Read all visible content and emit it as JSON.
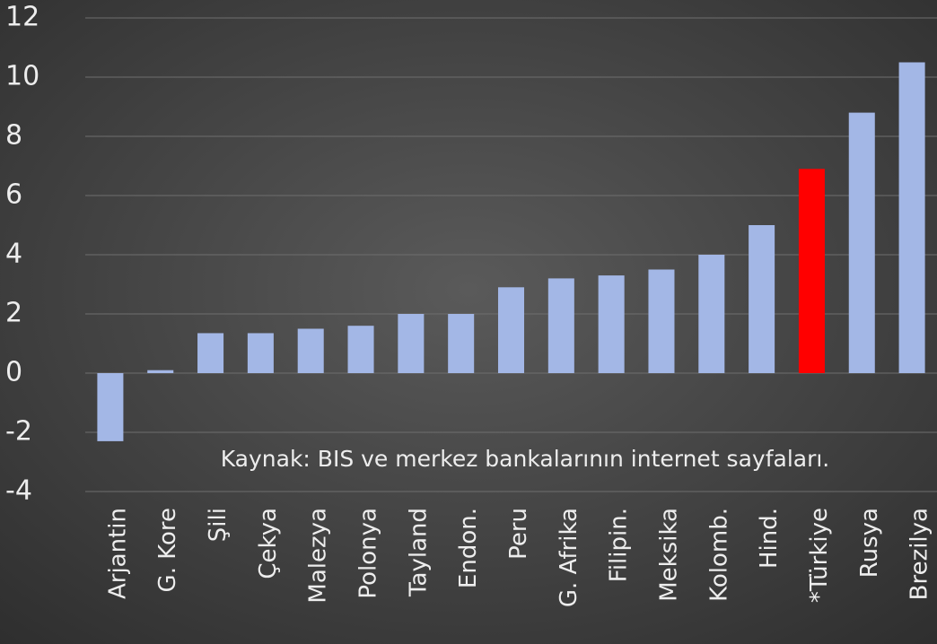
{
  "chart_data": {
    "type": "bar",
    "categories": [
      "Arjantin",
      "G. Kore",
      "Şili",
      "Çekya",
      "Malezya",
      "Polonya",
      "Tayland",
      "Endon.",
      "Peru",
      "G. Afrika",
      "Filipin.",
      "Meksika",
      "Kolomb.",
      "Hind.",
      "*Türkiye",
      "Rusya",
      "Brezilya"
    ],
    "values": [
      -2.3,
      0.1,
      1.35,
      1.35,
      1.5,
      1.6,
      2.0,
      2.0,
      2.9,
      3.2,
      3.3,
      3.5,
      4.0,
      5.0,
      6.9,
      8.8,
      10.5
    ],
    "colors": [
      "#a3b7e6",
      "#a3b7e6",
      "#a3b7e6",
      "#a3b7e6",
      "#a3b7e6",
      "#a3b7e6",
      "#a3b7e6",
      "#a3b7e6",
      "#a3b7e6",
      "#a3b7e6",
      "#a3b7e6",
      "#a3b7e6",
      "#a3b7e6",
      "#a3b7e6",
      "#ff0000",
      "#a3b7e6",
      "#a3b7e6"
    ],
    "ylim": [
      -4,
      12
    ],
    "yticks": [
      -4,
      -2,
      0,
      2,
      4,
      6,
      8,
      10,
      12
    ],
    "grid": true,
    "annotation": "Kaynak: BIS ve merkez bankalarının internet sayfaları."
  }
}
